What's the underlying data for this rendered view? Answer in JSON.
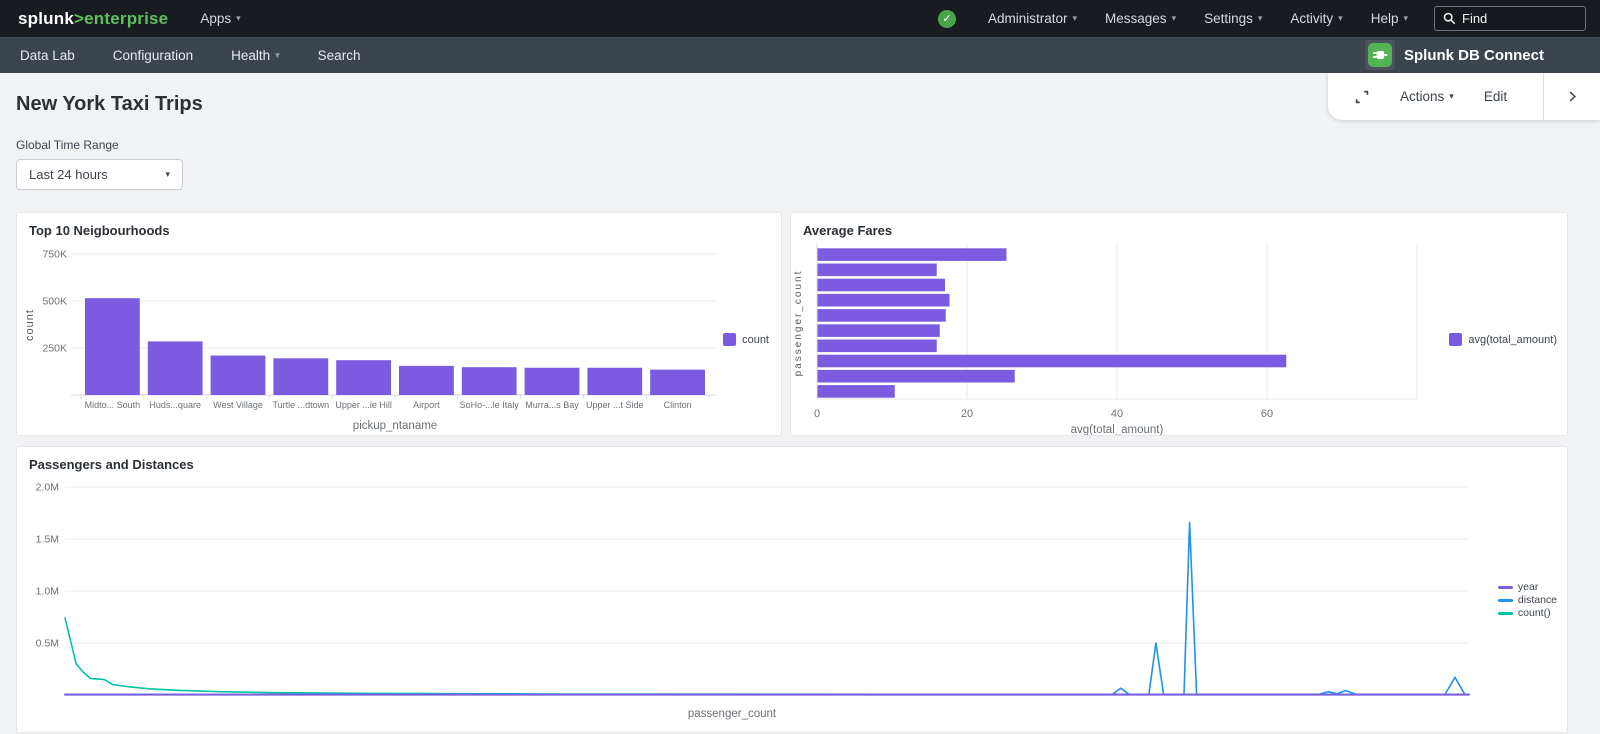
{
  "topnav": {
    "logo_brand": "splunk",
    "logo_product": ">enterprise",
    "apps_label": "Apps",
    "menus": [
      "Administrator",
      "Messages",
      "Settings",
      "Activity",
      "Help"
    ],
    "find_placeholder": "Find"
  },
  "subnav": {
    "items": [
      "Data Lab",
      "Configuration",
      "Health",
      "Search"
    ],
    "app_name": "Splunk DB Connect"
  },
  "toolbar": {
    "actions_label": "Actions",
    "edit_label": "Edit"
  },
  "page": {
    "title": "New York Taxi Trips",
    "time_range_label": "Global Time Range",
    "time_range_value": "Last 24 hours"
  },
  "colors": {
    "accent_purple": "#7b5ce0",
    "line_blue": "#1f92ee",
    "line_teal": "#00c5a2",
    "brand_green": "#5cc05c",
    "status_green": "#48a447",
    "grid": "#ececee",
    "axis_text": "#6b7075"
  },
  "chart_data": [
    {
      "type": "bar",
      "title": "Top 10 Neigbourhoods",
      "categories": [
        "Midto... South",
        "Huds...quare",
        "West Village",
        "Turtle ...dtown",
        "Upper ...ie Hill",
        "Airport",
        "SoHo-...le Italy",
        "Murra...s Bay",
        "Upper ...t Side",
        "Clinton"
      ],
      "values": [
        515000,
        285000,
        210000,
        195000,
        185000,
        155000,
        148000,
        145000,
        145000,
        135000
      ],
      "xlabel": "pickup_ntaname",
      "ylabel": "count",
      "y_ticks": [
        250000,
        500000,
        750000
      ],
      "y_tick_labels": [
        "250K",
        "500K",
        "750K"
      ],
      "ylim": [
        0,
        780000
      ],
      "grid": true,
      "bar_color": "#7b5ce0",
      "legend": [
        {
          "label": "count",
          "color": "#7b5ce0"
        }
      ],
      "legend_position": "right"
    },
    {
      "type": "bar",
      "orientation": "horizontal",
      "title": "Average Fares",
      "values": [
        25.2,
        15.9,
        17.0,
        17.6,
        17.1,
        16.3,
        15.9,
        62.5,
        26.3,
        10.3
      ],
      "category_labels_shown": false,
      "xlabel": "avg(total_amount)",
      "ylabel": "passenger_count",
      "x_ticks": [
        0,
        20,
        40,
        60
      ],
      "x_grid_extra": [
        80
      ],
      "xlim": [
        0,
        80
      ],
      "grid": true,
      "bar_color": "#7b5ce0",
      "legend": [
        {
          "label": "avg(total_amount)",
          "color": "#7b5ce0"
        }
      ],
      "legend_position": "right"
    },
    {
      "type": "line",
      "title": "Passengers and Distances",
      "xlabel": "passenger_count",
      "x_tick_labels_shown": false,
      "y_ticks": [
        500000,
        1000000,
        1500000,
        2000000
      ],
      "y_tick_labels": [
        "0.5M",
        "1.0M",
        "1.5M",
        "2.0M"
      ],
      "ylim": [
        0,
        2100000
      ],
      "grid": true,
      "legend_position": "right",
      "series": [
        {
          "name": "year",
          "color": "#7b5ce0",
          "points": [
            [
              0,
              4000
            ],
            [
              1,
              4000
            ]
          ]
        },
        {
          "name": "distance",
          "color": "#1f92ee",
          "points": [
            [
              0,
              6000
            ],
            [
              0.73,
              6000
            ],
            [
              0.746,
              6000
            ],
            [
              0.752,
              65000
            ],
            [
              0.758,
              6000
            ],
            [
              0.772,
              6000
            ],
            [
              0.777,
              500000
            ],
            [
              0.7825,
              6000
            ],
            [
              0.797,
              6000
            ],
            [
              0.801,
              1660000
            ],
            [
              0.806,
              6000
            ],
            [
              0.893,
              6000
            ],
            [
              0.9,
              32000
            ],
            [
              0.906,
              12000
            ],
            [
              0.912,
              42000
            ],
            [
              0.92,
              6000
            ],
            [
              0.983,
              6000
            ],
            [
              0.99,
              170000
            ],
            [
              0.997,
              6000
            ],
            [
              1,
              6000
            ]
          ]
        },
        {
          "name": "count()",
          "color": "#00c5a2",
          "points": [
            [
              0,
              740000
            ],
            [
              0.004,
              520000
            ],
            [
              0.008,
              300000
            ],
            [
              0.013,
              220000
            ],
            [
              0.018,
              160000
            ],
            [
              0.028,
              148000
            ],
            [
              0.034,
              100000
            ],
            [
              0.045,
              80000
            ],
            [
              0.06,
              60000
            ],
            [
              0.08,
              45000
            ],
            [
              0.11,
              32000
            ],
            [
              0.15,
              22000
            ],
            [
              0.22,
              15000
            ],
            [
              0.35,
              10000
            ],
            [
              0.6,
              7000
            ],
            [
              1,
              6000
            ]
          ]
        }
      ]
    }
  ]
}
